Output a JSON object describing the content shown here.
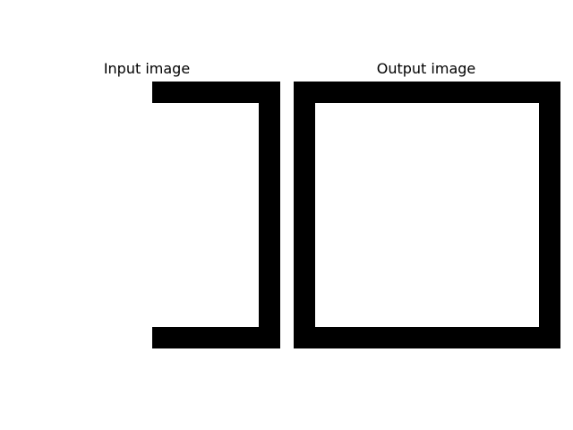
{
  "panels": [
    {
      "title": "Input image"
    },
    {
      "title": "Output image"
    }
  ],
  "colors": {
    "stroke": "#000000",
    "background": "#ffffff"
  }
}
